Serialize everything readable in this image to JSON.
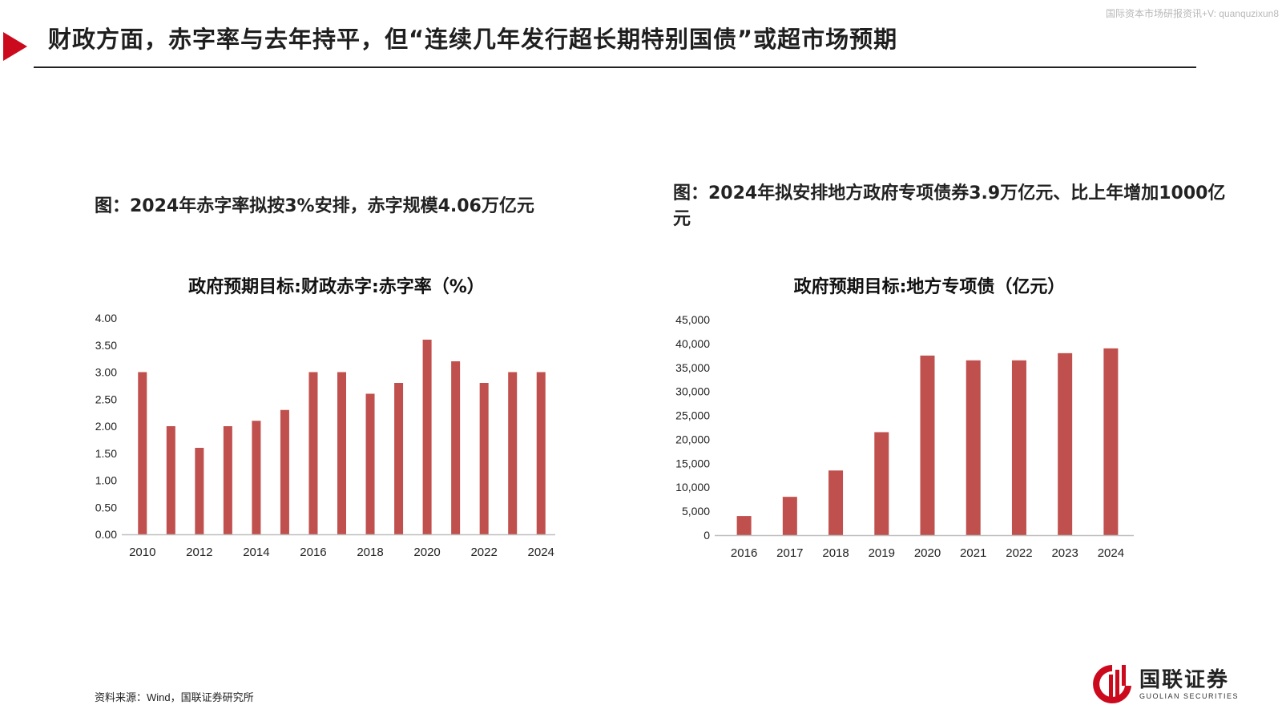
{
  "watermark": "国际资本市场研报资讯+V: quanquzixun8",
  "page_title": "财政方面，赤字率与去年持平，但“连续几年发行超长期特别国债”或超市场预期",
  "captions": {
    "left": "图：2024年赤字率拟按3%安排，赤字规模4.06万亿元",
    "right": "图：2024年拟安排地方政府专项债券3.9万亿元、比上年增加1000亿元"
  },
  "source": "资料来源：Wind，国联证券研究所",
  "logo": {
    "name": "国联证券",
    "name_en": "GUOLIAN SECURITIES"
  },
  "colors": {
    "accent": "#cc0a1e",
    "bar": "#c0504d",
    "axis": "#bfbfbf"
  },
  "chart_data": [
    {
      "type": "bar",
      "title": "政府预期目标:财政赤字:赤字率（%）",
      "categories": [
        "2010",
        "2011",
        "2012",
        "2013",
        "2014",
        "2015",
        "2016",
        "2017",
        "2018",
        "2019",
        "2020",
        "2021",
        "2022",
        "2023",
        "2024"
      ],
      "x_tick_labels": [
        "2010",
        "2012",
        "2014",
        "2016",
        "2018",
        "2020",
        "2022",
        "2024"
      ],
      "values": [
        3.0,
        2.0,
        1.6,
        2.0,
        2.1,
        2.3,
        3.0,
        3.0,
        2.6,
        2.8,
        3.6,
        3.2,
        2.8,
        3.0,
        3.0
      ],
      "ylim": [
        0,
        4
      ],
      "y_ticks": [
        "0.00",
        "0.50",
        "1.00",
        "1.50",
        "2.00",
        "2.50",
        "3.00",
        "3.50",
        "4.00"
      ],
      "grid": false
    },
    {
      "type": "bar",
      "title": "政府预期目标:地方专项债（亿元）",
      "categories": [
        "2016",
        "2017",
        "2018",
        "2019",
        "2020",
        "2021",
        "2022",
        "2023",
        "2024"
      ],
      "x_tick_labels": [
        "2016",
        "2017",
        "2018",
        "2019",
        "2020",
        "2021",
        "2022",
        "2023",
        "2024"
      ],
      "values": [
        4000,
        8000,
        13500,
        21500,
        37500,
        36500,
        36500,
        38000,
        39000
      ],
      "ylim": [
        0,
        45000
      ],
      "y_ticks": [
        "0",
        "5,000",
        "10,000",
        "15,000",
        "20,000",
        "25,000",
        "30,000",
        "35,000",
        "40,000",
        "45,000"
      ],
      "grid": false
    }
  ]
}
